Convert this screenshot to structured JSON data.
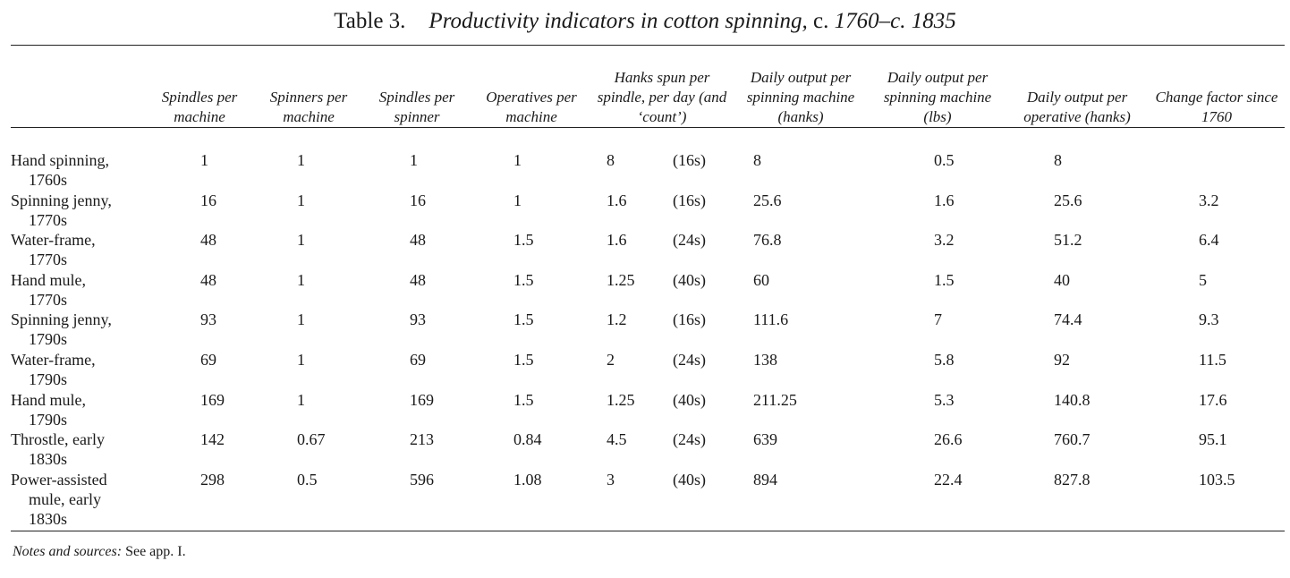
{
  "title": {
    "label": "Table 3.",
    "main": "Productivity indicators in cotton spinning,",
    "c1": "c.",
    "y1": "1760–c. 1835"
  },
  "headers": [
    "Spindles per machine",
    "Spinners per machine",
    "Spindles per spinner",
    "Operatives per machine",
    "Hanks spun per spindle, per day (and ‘count’)",
    "Daily output per spinning machine (hanks)",
    "Daily output per spinning machine (lbs)",
    "Daily output per operative (hanks)",
    "Change factor since 1760"
  ],
  "rows": [
    {
      "l1": "Hand spinning,",
      "l2": "1760s",
      "v": [
        "1",
        "1",
        "1",
        "1",
        "8",
        "(16s)",
        "8",
        "0.5",
        "8",
        ""
      ]
    },
    {
      "l1": "Spinning jenny,",
      "l2": "1770s",
      "v": [
        "16",
        "1",
        "16",
        "1",
        "1.6",
        "(16s)",
        "25.6",
        "1.6",
        "25.6",
        "3.2"
      ]
    },
    {
      "l1": "Water-frame,",
      "l2": "1770s",
      "v": [
        "48",
        "1",
        "48",
        "1.5",
        "1.6",
        "(24s)",
        "76.8",
        "3.2",
        "51.2",
        "6.4"
      ]
    },
    {
      "l1": "Hand mule,",
      "l2": "1770s",
      "v": [
        "48",
        "1",
        "48",
        "1.5",
        "1.25",
        "(40s)",
        "60",
        "1.5",
        "40",
        "5"
      ]
    },
    {
      "l1": "Spinning jenny,",
      "l2": "1790s",
      "v": [
        "93",
        "1",
        "93",
        "1.5",
        "1.2",
        "(16s)",
        "111.6",
        "7",
        "74.4",
        "9.3"
      ]
    },
    {
      "l1": "Water-frame,",
      "l2": "1790s",
      "v": [
        "69",
        "1",
        "69",
        "1.5",
        "2",
        "(24s)",
        "138",
        "5.8",
        "92",
        "11.5"
      ]
    },
    {
      "l1": "Hand mule,",
      "l2": "1790s",
      "v": [
        "169",
        "1",
        "169",
        "1.5",
        "1.25",
        "(40s)",
        "211.25",
        "5.3",
        "140.8",
        "17.6"
      ]
    },
    {
      "l1": "Throstle, early",
      "l2": "1830s",
      "v": [
        "142",
        "0.67",
        "213",
        "0.84",
        "4.5",
        "(24s)",
        "639",
        "26.6",
        "760.7",
        "95.1"
      ]
    },
    {
      "l1": "Power-assisted",
      "l2": "mule, early",
      "l3": "1830s",
      "v": [
        "298",
        "0.5",
        "596",
        "1.08",
        "3",
        "(40s)",
        "894",
        "22.4",
        "827.8",
        "103.5"
      ]
    }
  ],
  "notes": {
    "key": "Notes and sources:",
    "text": " See app. I."
  }
}
